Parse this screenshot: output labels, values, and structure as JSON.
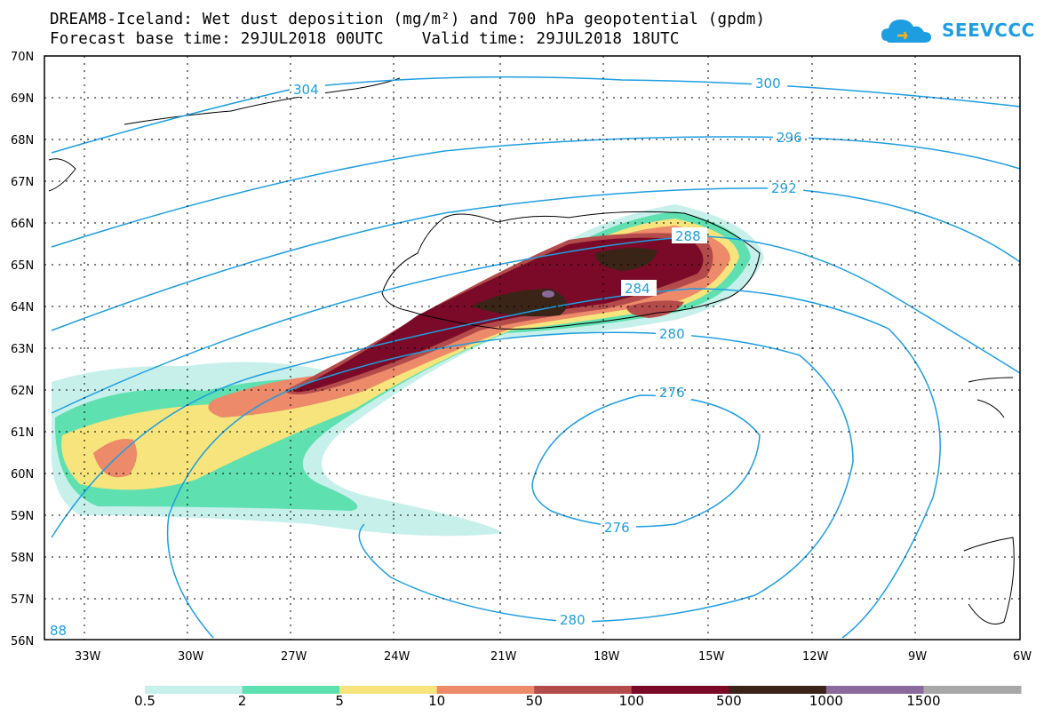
{
  "header": {
    "title_line1": "DREAM8-Iceland: Wet dust deposition (mg/m²) and 700 hPa geopotential (gpdm)",
    "title_line2": "Forecast base time: 29JUL2018 00UTC    Valid time: 29JUL2018 18UTC"
  },
  "logo": {
    "text": "SEEVCCC",
    "icon": "cloud-logo-icon",
    "color": "#1e9ee0"
  },
  "map": {
    "lat_labels": [
      "70N",
      "69N",
      "68N",
      "67N",
      "66N",
      "65N",
      "64N",
      "63N",
      "62N",
      "61N",
      "60N",
      "59N",
      "58N",
      "57N",
      "56N"
    ],
    "lon_labels": [
      "33W",
      "30W",
      "27W",
      "24W",
      "21W",
      "18W",
      "15W",
      "12W",
      "9W",
      "6W"
    ],
    "contour_color": "#1e9ee0",
    "contour_labels": [
      "304",
      "300",
      "296",
      "292",
      "288",
      "284",
      "280",
      "276",
      "276",
      "280",
      "88"
    ]
  },
  "legend": {
    "labels": [
      "0.5",
      "2",
      "5",
      "10",
      "50",
      "100",
      "500",
      "1000",
      "1500"
    ],
    "colors": [
      "#c8f0eb",
      "#5fe0b0",
      "#f7e47c",
      "#ec8a6a",
      "#b34b4b",
      "#7a0a28",
      "#3a2418",
      "#8a6a9a",
      "#a8a8a8"
    ]
  }
}
